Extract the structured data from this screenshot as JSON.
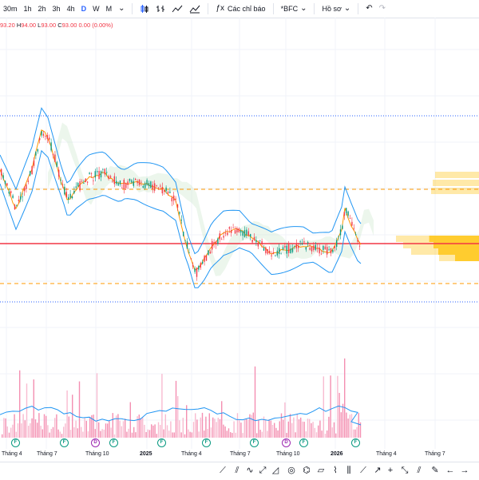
{
  "toolbar": {
    "intervals": [
      "30m",
      "1h",
      "2h",
      "3h",
      "4h",
      "D",
      "W",
      "M"
    ],
    "active_interval": "D",
    "indicators_label": "Các chỉ báo",
    "symbol_label": "*BFC",
    "profile_label": "Hồ sơ"
  },
  "ohlc": {
    "open": "93.20",
    "high_label": "H",
    "high": "94.00",
    "low_label": "L",
    "low": "93.00",
    "close_label": "C",
    "close": "93.00",
    "change": "0.00 (0.00%)"
  },
  "xaxis": {
    "labels": [
      "Tháng 4",
      "Tháng 7",
      "Tháng 10",
      "2025",
      "Tháng 4",
      "Tháng 7",
      "Tháng 10",
      "2026",
      "Tháng 4",
      "Tháng 7"
    ]
  },
  "events": [
    {
      "type": "F"
    },
    {
      "type": "F"
    },
    {
      "type": "D"
    },
    {
      "type": "F"
    },
    {
      "type": "F"
    },
    {
      "type": "F"
    },
    {
      "type": "F"
    },
    {
      "type": "D"
    },
    {
      "type": "F"
    },
    {
      "type": "F"
    }
  ],
  "colors": {
    "up": "#089981",
    "down": "#f23645",
    "bollinger": "#2196f3",
    "ma": "#ff9800",
    "support_line": "#f23645",
    "level_orange": "#ff9800",
    "level_blue": "#2962ff",
    "volume_up": "#f8bbd0",
    "volume_down": "#f48fb1",
    "volume_profile": "#ffc107"
  },
  "drawing_tools": [
    "trendline-icon",
    "pitchfork-icon",
    "brush-icon",
    "text-icon",
    "pattern-icon",
    "prediction-icon",
    "shapes-icon",
    "measure-icon",
    "zoom-icon",
    "magnet-icon",
    "lock-icon",
    "eye-icon",
    "trash-icon",
    "arrow-icon",
    "crosshair-icon",
    "ruler-icon",
    "annotation-icon"
  ]
}
